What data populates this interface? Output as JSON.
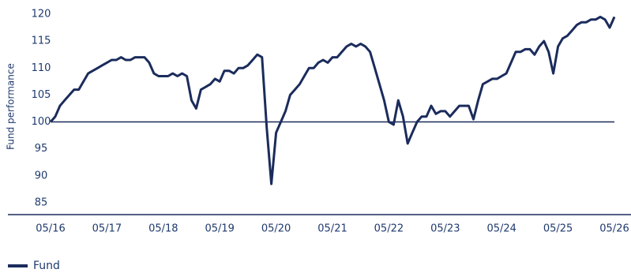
{
  "chart_data": {
    "type": "line",
    "y_label": "Fund performance",
    "categories": [
      "05/16",
      null,
      null,
      null,
      null,
      null,
      null,
      null,
      null,
      null,
      null,
      null,
      "05/17",
      null,
      null,
      null,
      null,
      null,
      null,
      null,
      null,
      null,
      null,
      null,
      "05/18",
      null,
      null,
      null,
      null,
      null,
      null,
      null,
      null,
      null,
      null,
      null,
      "05/19",
      null,
      null,
      null,
      null,
      null,
      null,
      null,
      null,
      null,
      null,
      null,
      "05/20",
      null,
      null,
      null,
      null,
      null,
      null,
      null,
      null,
      null,
      null,
      null,
      "05/21",
      null,
      null,
      null,
      null,
      null,
      null,
      null,
      null,
      null,
      null,
      null,
      "05/22",
      null,
      null,
      null,
      null,
      null,
      null,
      null,
      null,
      null,
      null,
      null,
      "05/23",
      null,
      null,
      null,
      null,
      null,
      null,
      null,
      null,
      null,
      null,
      null,
      "05/24",
      null,
      null,
      null,
      null,
      null,
      null,
      null,
      null,
      null,
      null,
      null,
      "05/25",
      null,
      null,
      null,
      null,
      null,
      null,
      null,
      null,
      null,
      null,
      null,
      "05/26"
    ],
    "series": [
      {
        "name": "Fund",
        "color": "#1b2c5c",
        "values": [
          100,
          101,
          103,
          104,
          105,
          106,
          106,
          107.5,
          109,
          109.5,
          110,
          110.5,
          111,
          111.5,
          111.5,
          112,
          111.5,
          111.5,
          112,
          112,
          112,
          111,
          109,
          108.5,
          108.5,
          108.5,
          109,
          108.5,
          109,
          108.5,
          104,
          102.5,
          106,
          106.5,
          107,
          108,
          107.5,
          109.5,
          109.5,
          109,
          110,
          110,
          110.5,
          111.5,
          112.5,
          112,
          99,
          88.5,
          98,
          100,
          102,
          105,
          106,
          107,
          108.5,
          110,
          110,
          111,
          111.5,
          111,
          112,
          112,
          113,
          114,
          114.5,
          114,
          114.5,
          114,
          113,
          110,
          107,
          104,
          100,
          99.5,
          104,
          101,
          96,
          98,
          100,
          101,
          101,
          103,
          101.5,
          102,
          102,
          101,
          102,
          103,
          103,
          103,
          100.5,
          104,
          107,
          107.5,
          108,
          108,
          108.5,
          109,
          111,
          113,
          113,
          113.5,
          113.5,
          112.5,
          114,
          115,
          113,
          109,
          114,
          115.5,
          116,
          117,
          118,
          118.5,
          118.5,
          119,
          119,
          119.5,
          119,
          117.5,
          119.5
        ]
      }
    ],
    "reference_line": 100,
    "ylim": [
      82.8,
      121.9
    ],
    "yticks": [
      85,
      90,
      95,
      100,
      105,
      110,
      115,
      120
    ]
  }
}
